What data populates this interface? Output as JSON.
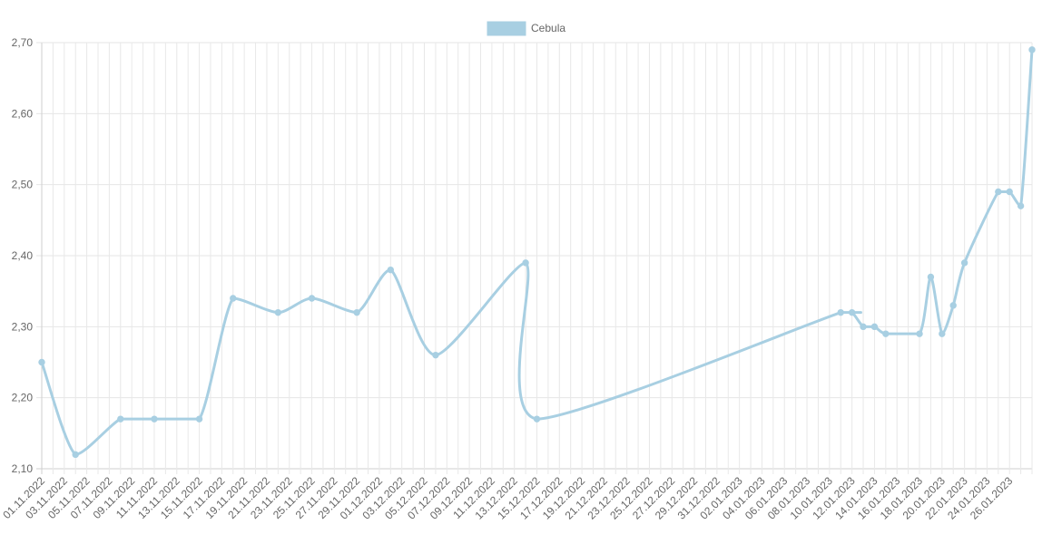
{
  "chart_data": {
    "type": "line",
    "title": "",
    "xlabel": "",
    "ylabel": "",
    "legend": {
      "position": "top-center"
    },
    "grid": true,
    "ylim": [
      2.1,
      2.7
    ],
    "y_ticks": [
      "2,10",
      "2,20",
      "2,30",
      "2,40",
      "2,50",
      "2,60",
      "2,70"
    ],
    "x_ticks": [
      "01.11.2022",
      "03.11.2022",
      "05.11.2022",
      "07.11.2022",
      "09.11.2022",
      "11.11.2022",
      "13.11.2022",
      "15.11.2022",
      "17.11.2022",
      "19.11.2022",
      "21.11.2022",
      "23.11.2022",
      "25.11.2022",
      "27.11.2022",
      "29.11.2022",
      "01.12.2022",
      "03.12.2022",
      "05.12.2022",
      "07.12.2022",
      "09.12.2022",
      "11.12.2022",
      "13.12.2022",
      "15.12.2022",
      "17.12.2022",
      "19.12.2022",
      "21.12.2022",
      "23.12.2022",
      "25.12.2022",
      "27.12.2022",
      "29.12.2022",
      "31.12.2022",
      "02.01.2023",
      "04.01.2023",
      "06.01.2023",
      "08.01.2023",
      "10.01.2023",
      "12.01.2023",
      "14.01.2023",
      "16.01.2023",
      "18.01.2023",
      "20.01.2023",
      "22.01.2023",
      "24.01.2023",
      "26.01.2023"
    ],
    "series": [
      {
        "name": "Cebula",
        "color": "#a8cfe2",
        "points": [
          {
            "x": "01.11.2022",
            "y": 2.25
          },
          {
            "x": "04.11.2022",
            "y": 2.12
          },
          {
            "x": "08.11.2022",
            "y": 2.17
          },
          {
            "x": "11.11.2022",
            "y": 2.17
          },
          {
            "x": "15.11.2022",
            "y": 2.17
          },
          {
            "x": "18.11.2022",
            "y": 2.34
          },
          {
            "x": "22.11.2022",
            "y": 2.32
          },
          {
            "x": "25.11.2022",
            "y": 2.34
          },
          {
            "x": "29.11.2022",
            "y": 2.32
          },
          {
            "x": "02.12.2022",
            "y": 2.38
          },
          {
            "x": "06.12.2022",
            "y": 2.26
          },
          {
            "x": "14.12.2022",
            "y": 2.39
          },
          {
            "x": "15.12.2022",
            "y": 2.17
          },
          {
            "x": "11.01.2023",
            "y": 2.32
          },
          {
            "x": "12.01.2023",
            "y": 2.32
          },
          {
            "x": "13.01.2023",
            "y": 2.3
          },
          {
            "x": "14.01.2023",
            "y": 2.3
          },
          {
            "x": "15.01.2023",
            "y": 2.29
          },
          {
            "x": "18.01.2023",
            "y": 2.29
          },
          {
            "x": "19.01.2023",
            "y": 2.37
          },
          {
            "x": "20.01.2023",
            "y": 2.29
          },
          {
            "x": "21.01.2023",
            "y": 2.33
          },
          {
            "x": "22.01.2023",
            "y": 2.39
          },
          {
            "x": "25.01.2023",
            "y": 2.49
          },
          {
            "x": "26.01.2023",
            "y": 2.49
          },
          {
            "x": "27.01.2023",
            "y": 2.47
          },
          {
            "x": "28.01.2023",
            "y": 2.69
          }
        ]
      }
    ]
  }
}
